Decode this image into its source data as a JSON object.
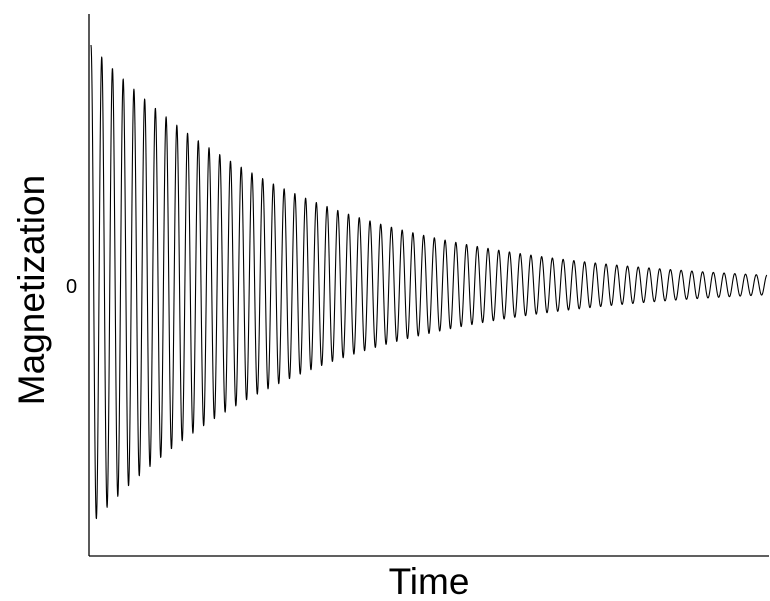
{
  "chart_data": {
    "type": "line",
    "title": "",
    "xlabel": "Time",
    "ylabel": "Magnetization",
    "y_tick_labels": [
      "0"
    ],
    "y_tick_values": [
      0
    ],
    "xlim": [
      0,
      1
    ],
    "ylim": [
      -1.05,
      1.05
    ],
    "grid": false,
    "legend": "none",
    "line_color": "#000000",
    "series": [
      {
        "function": "damped cosine",
        "amplitude": 1.0,
        "decay_rate": 3.2,
        "cycles": 63,
        "baseline": 0
      }
    ]
  }
}
